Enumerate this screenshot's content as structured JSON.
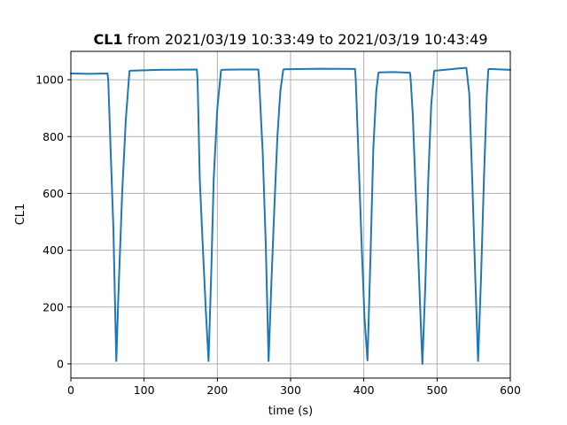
{
  "chart_data": {
    "type": "line",
    "title_bold": "CL1",
    "title_rest": " from 2021/03/19 10:33:49 to 2021/03/19 10:43:49",
    "xlabel": "time (s)",
    "ylabel": "CL1",
    "xlim": [
      0,
      600
    ],
    "ylim": [
      -50,
      1100
    ],
    "xticks": [
      0,
      100,
      200,
      300,
      400,
      500,
      600
    ],
    "yticks": [
      0,
      200,
      400,
      600,
      800,
      1000
    ],
    "grid": true,
    "line_color": "#1f77b4",
    "series": [
      {
        "x": [
          0,
          25,
          50,
          51,
          55,
          58,
          62,
          65,
          70,
          75,
          80,
          81,
          120,
          172,
          173,
          176,
          180,
          184,
          188,
          192,
          195,
          200,
          205,
          206,
          230,
          256,
          257,
          262,
          266,
          270,
          274,
          278,
          282,
          286,
          290,
          291,
          340,
          388,
          389,
          393,
          397,
          401,
          405,
          409,
          413,
          417,
          420,
          421,
          440,
          463,
          464,
          467,
          470,
          474,
          479,
          480,
          484,
          488,
          492,
          496,
          497,
          510,
          530,
          540,
          544,
          548,
          552,
          556,
          560,
          564,
          568,
          570,
          571,
          600
        ],
        "y": [
          1022,
          1021,
          1022,
          1000,
          700,
          480,
          10,
          250,
          600,
          860,
          1030,
          1032,
          1035,
          1036,
          1000,
          650,
          420,
          200,
          10,
          350,
          650,
          900,
          1033,
          1035,
          1036,
          1036,
          1000,
          740,
          430,
          10,
          300,
          560,
          800,
          960,
          1035,
          1037,
          1039,
          1038,
          1000,
          710,
          420,
          160,
          12,
          370,
          760,
          960,
          1025,
          1026,
          1027,
          1025,
          1000,
          870,
          660,
          400,
          60,
          0,
          280,
          650,
          910,
          1030,
          1032,
          1035,
          1040,
          1042,
          950,
          650,
          320,
          10,
          300,
          650,
          950,
          1036,
          1038,
          1035
        ]
      }
    ]
  }
}
